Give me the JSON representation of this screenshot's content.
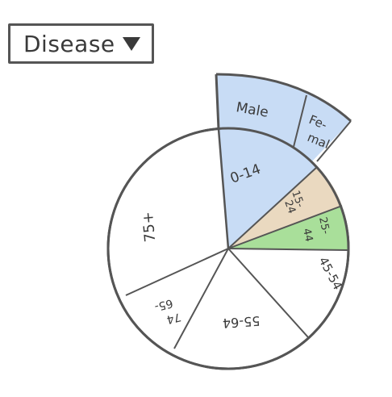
{
  "dropdown": {
    "selected": "Disease",
    "icon": "caret-down-icon"
  },
  "segments": {
    "male": "Male",
    "female_top": "Fe-",
    "female_bottom": "mal",
    "age_0_14": "0-14",
    "age_15_24_top": "15-",
    "age_15_24_bottom": "24",
    "age_25_44_top": "25-",
    "age_25_44_bottom": "44",
    "age_45_54": "45-54",
    "age_55_64": "55-64",
    "age_65_74_top": "65-",
    "age_65_74_bottom": "74",
    "age_75_plus": "75+"
  },
  "colors": {
    "stroke": "#555555",
    "blue": "#c8dcf5",
    "tan": "#ead9c0",
    "green": "#a9df9a",
    "white": "#ffffff"
  }
}
